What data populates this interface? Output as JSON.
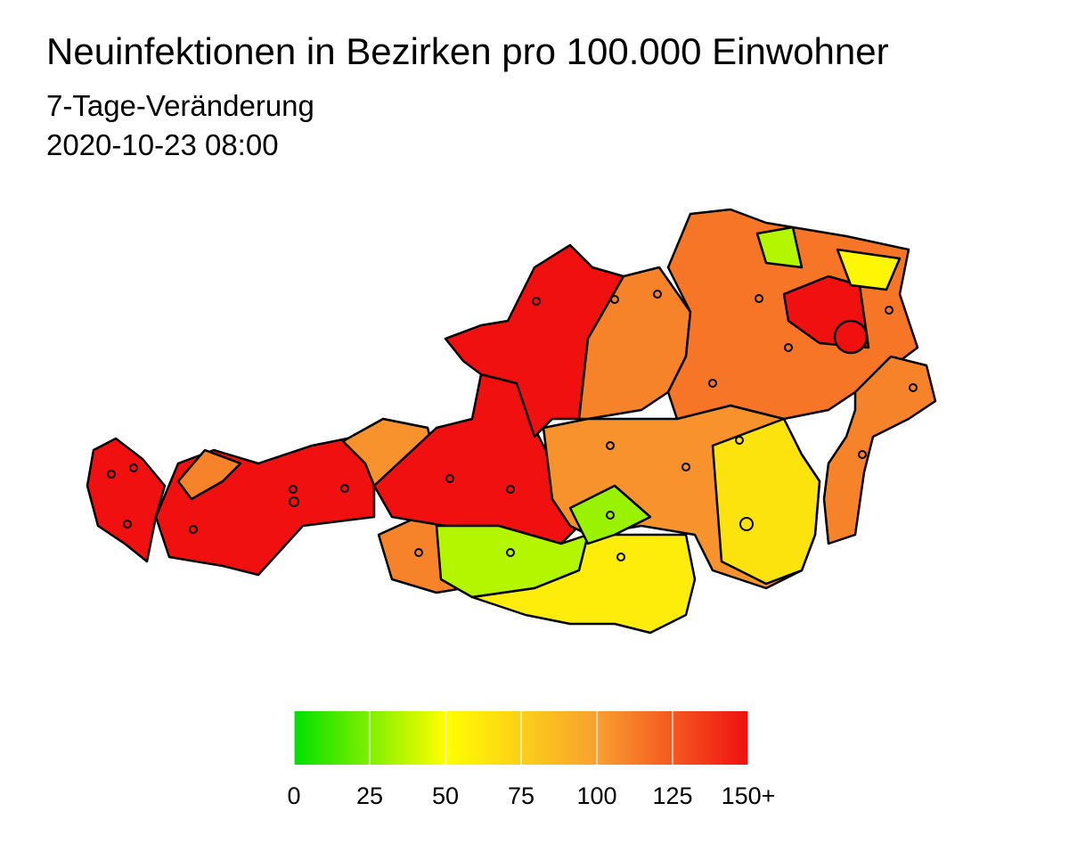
{
  "title": "Neuinfektionen in Bezirken pro 100.000 Einwohner",
  "subtitle": "7-Tage-Veränderung",
  "date": "2020-10-23 08:00",
  "colorbar": {
    "lim": [
      0,
      150
    ],
    "ticks": [
      0,
      25,
      50,
      75,
      100,
      125,
      {
        "value": 150,
        "label": "150+"
      }
    ],
    "stops": [
      {
        "value": 0,
        "color": "#00e000"
      },
      {
        "value": 50,
        "color": "#ffff00"
      },
      {
        "value": 100,
        "color": "#f8a030"
      },
      {
        "value": 150,
        "color": "#f01010"
      }
    ]
  },
  "region_values": [
    160,
    160,
    110,
    105,
    110,
    160,
    160,
    110,
    35,
    60,
    105,
    30,
    65,
    115,
    160,
    55,
    35,
    160,
    110
  ]
}
